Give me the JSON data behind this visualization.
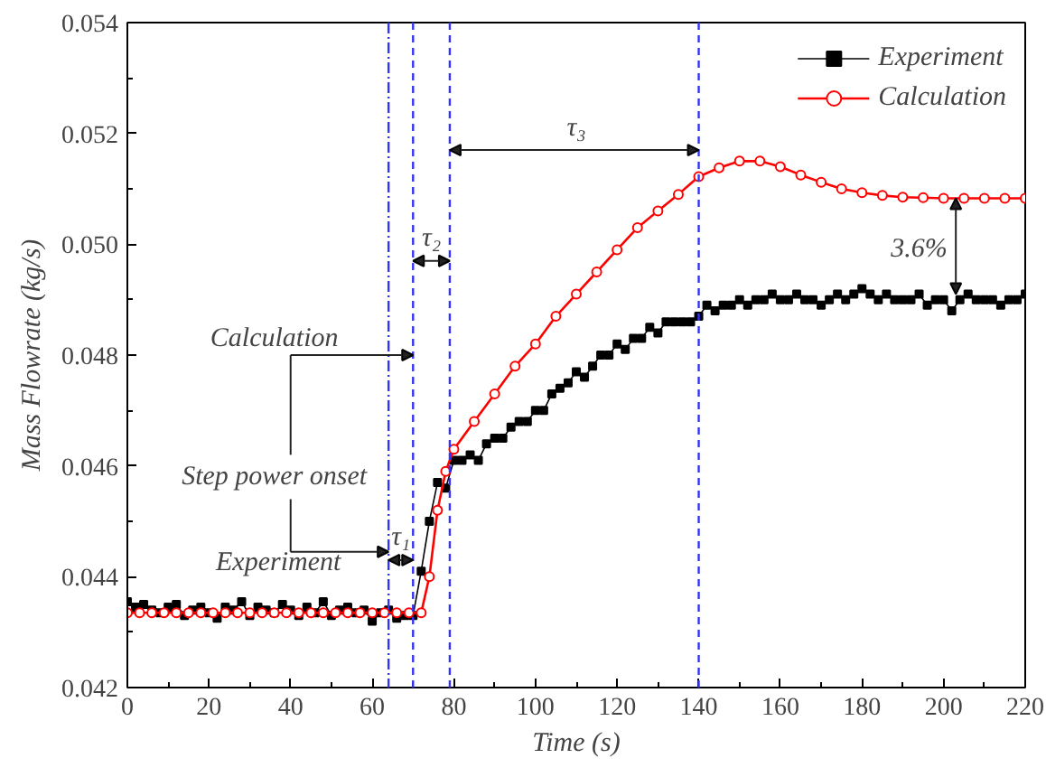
{
  "chart_data": {
    "type": "line",
    "xlabel": "Time (s)",
    "ylabel": "Mass Flowrate (kg/s)",
    "xlim": [
      0,
      220
    ],
    "xticks": [
      0,
      20,
      40,
      60,
      80,
      100,
      120,
      140,
      160,
      180,
      200,
      220
    ],
    "ylim": [
      0.042,
      0.054
    ],
    "yticks": [
      0.042,
      0.044,
      0.046,
      0.048,
      {
        "value": 0.05,
        "label": "0.050"
      },
      0.052,
      0.054
    ],
    "grid": false,
    "legend": "top right",
    "line_style": "solid",
    "series": [
      {
        "name": "Experiment",
        "color": "#000000",
        "marker": "square",
        "x": [
          0,
          2,
          4,
          6,
          8,
          10,
          12,
          14,
          16,
          18,
          20,
          22,
          24,
          26,
          28,
          30,
          32,
          34,
          36,
          38,
          40,
          42,
          44,
          46,
          48,
          50,
          52,
          54,
          56,
          58,
          60,
          62,
          64,
          66,
          68,
          70,
          72,
          74,
          76,
          78,
          80,
          82,
          84,
          86,
          88,
          90,
          92,
          94,
          96,
          98,
          100,
          102,
          104,
          106,
          108,
          110,
          112,
          114,
          116,
          118,
          120,
          122,
          124,
          126,
          128,
          130,
          132,
          134,
          136,
          138,
          140,
          142,
          144,
          146,
          148,
          150,
          152,
          154,
          156,
          158,
          160,
          162,
          164,
          166,
          168,
          170,
          172,
          174,
          176,
          178,
          180,
          182,
          184,
          186,
          188,
          190,
          192,
          194,
          196,
          198,
          200,
          202,
          204,
          206,
          208,
          210,
          212,
          214,
          216,
          218,
          220
        ],
        "values": [
          0.04355,
          0.04345,
          0.0435,
          0.0434,
          0.04335,
          0.04345,
          0.0435,
          0.0433,
          0.0434,
          0.04345,
          0.04335,
          0.04325,
          0.04345,
          0.0434,
          0.04355,
          0.0433,
          0.04345,
          0.0434,
          0.04335,
          0.0435,
          0.0434,
          0.0433,
          0.04345,
          0.04335,
          0.04355,
          0.0433,
          0.0434,
          0.04345,
          0.04335,
          0.0434,
          0.0432,
          0.04335,
          0.0434,
          0.04325,
          0.0433,
          0.0433,
          0.0441,
          0.045,
          0.0457,
          0.0456,
          0.0461,
          0.0461,
          0.0462,
          0.0461,
          0.0464,
          0.0465,
          0.0465,
          0.0467,
          0.0468,
          0.0468,
          0.047,
          0.047,
          0.0473,
          0.0474,
          0.0475,
          0.0477,
          0.0476,
          0.0478,
          0.048,
          0.048,
          0.0482,
          0.0481,
          0.0483,
          0.0483,
          0.0485,
          0.0484,
          0.0486,
          0.0486,
          0.0486,
          0.0486,
          0.0487,
          0.0489,
          0.0488,
          0.0489,
          0.0489,
          0.049,
          0.0489,
          0.049,
          0.049,
          0.0491,
          0.049,
          0.049,
          0.0491,
          0.049,
          0.049,
          0.0489,
          0.049,
          0.0491,
          0.049,
          0.0491,
          0.0492,
          0.0491,
          0.049,
          0.0491,
          0.049,
          0.049,
          0.049,
          0.0491,
          0.0489,
          0.049,
          0.049,
          0.0488,
          0.049,
          0.0491,
          0.049,
          0.049,
          0.049,
          0.0489,
          0.049,
          0.049,
          0.0491
        ]
      },
      {
        "name": "Calculation",
        "color": "#ff0000",
        "marker": "circle",
        "x": [
          0,
          3,
          6,
          9,
          12,
          15,
          18,
          21,
          24,
          27,
          30,
          33,
          36,
          39,
          42,
          45,
          48,
          51,
          54,
          57,
          60,
          63,
          66,
          69,
          72,
          74,
          76,
          78,
          80,
          85,
          90,
          95,
          100,
          105,
          110,
          115,
          120,
          125,
          130,
          135,
          140,
          145,
          150,
          155,
          160,
          165,
          170,
          175,
          180,
          185,
          190,
          195,
          200,
          205,
          210,
          215,
          220
        ],
        "values": [
          0.04335,
          0.04335,
          0.04335,
          0.04335,
          0.04335,
          0.04335,
          0.04335,
          0.04335,
          0.04335,
          0.04335,
          0.04335,
          0.04335,
          0.04335,
          0.04335,
          0.04335,
          0.04335,
          0.04335,
          0.04335,
          0.04335,
          0.04335,
          0.04335,
          0.04335,
          0.04335,
          0.04335,
          0.04335,
          0.044,
          0.0452,
          0.0459,
          0.0463,
          0.0468,
          0.0473,
          0.0478,
          0.0482,
          0.0487,
          0.0491,
          0.0495,
          0.0499,
          0.0503,
          0.0506,
          0.0509,
          0.05122,
          0.05138,
          0.0515,
          0.0515,
          0.0514,
          0.05125,
          0.05112,
          0.051,
          0.05093,
          0.05088,
          0.05085,
          0.05084,
          0.05083,
          0.05083,
          0.05083,
          0.05083,
          0.05083
        ]
      }
    ],
    "ref_lines": [
      {
        "axis": "x",
        "value": 64,
        "color": "#3333ff",
        "line_style": "dashdot"
      },
      {
        "axis": "x",
        "value": 70,
        "color": "#3333ff",
        "line_style": "dashed"
      },
      {
        "axis": "x",
        "value": 79,
        "color": "#3333ff",
        "line_style": "dashed"
      },
      {
        "axis": "x",
        "value": 140,
        "color": "#3333ff",
        "line_style": "dashed"
      }
    ],
    "annotations": [
      "τ₁",
      "τ₂",
      "τ₃",
      "3.6%",
      {
        "text": "Calculation",
        "x": 70,
        "y": 0.048
      },
      "Step power onset",
      {
        "text": "Experiment",
        "x": 64,
        "y": 0.04445
      }
    ]
  }
}
